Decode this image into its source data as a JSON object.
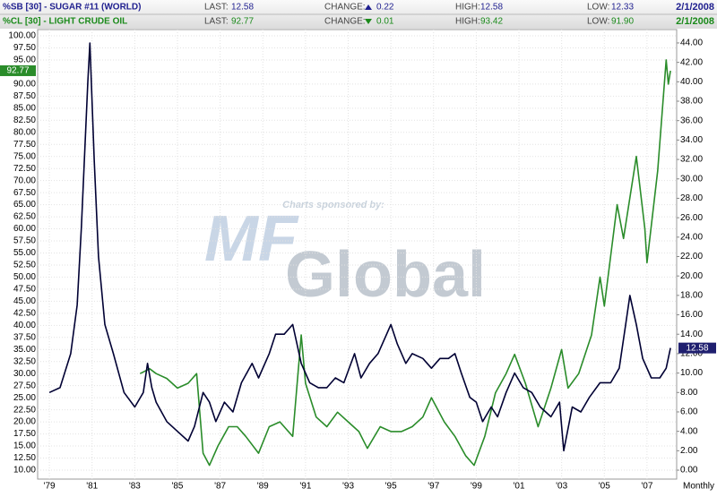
{
  "header": {
    "rows": [
      {
        "symbol": "%SB [30] - SUGAR #11 (WORLD)",
        "color": "#1f1f8f",
        "last_label": "LAST:",
        "last": "12.58",
        "change_label": "CHANGE:",
        "change_direction": "up",
        "change": "0.22",
        "high_label": "HIGH:",
        "high": "12.58",
        "low_label": "LOW:",
        "low": "12.33",
        "date": "2/1/2008"
      },
      {
        "symbol": "%CL [30] - LIGHT CRUDE OIL",
        "color": "#1a8a1a",
        "last_label": "LAST:",
        "last": "92.77",
        "change_label": "CHANGE:",
        "change_direction": "down",
        "change": "0.01",
        "high_label": "HIGH:",
        "high": "93.42",
        "low_label": "LOW:",
        "low": "91.90",
        "date": "2/1/2008"
      }
    ]
  },
  "chart_data": {
    "type": "line",
    "annotations": [
      "Charts sponsored by:",
      "MF",
      "Global"
    ],
    "x_unit_label": "Monthly",
    "xlim": [
      1978.45,
      2008.39
    ],
    "xticks": [
      {
        "value": 1979,
        "label": "'79"
      },
      {
        "value": 1981,
        "label": "'81"
      },
      {
        "value": 1983,
        "label": "'83"
      },
      {
        "value": 1985,
        "label": "'85"
      },
      {
        "value": 1987,
        "label": "'87"
      },
      {
        "value": 1989,
        "label": "'89"
      },
      {
        "value": 1991,
        "label": "'91"
      },
      {
        "value": 1993,
        "label": "'93"
      },
      {
        "value": 1995,
        "label": "'95"
      },
      {
        "value": 1997,
        "label": "'97"
      },
      {
        "value": 1999,
        "label": "'99"
      },
      {
        "value": 2001,
        "label": "'01"
      },
      {
        "value": 2003,
        "label": "'03"
      },
      {
        "value": 2005,
        "label": "'05"
      },
      {
        "value": 2007,
        "label": "'07"
      }
    ],
    "ylim": [
      8.14,
      101.3
    ],
    "yticks": [
      {
        "value": 10,
        "label": "10.00"
      },
      {
        "value": 12.5,
        "label": "12.50"
      },
      {
        "value": 15,
        "label": "15.00"
      },
      {
        "value": 17.5,
        "label": "17.50"
      },
      {
        "value": 20,
        "label": "20.00"
      },
      {
        "value": 22.5,
        "label": "22.50"
      },
      {
        "value": 25,
        "label": "25.00"
      },
      {
        "value": 27.5,
        "label": "27.50"
      },
      {
        "value": 30,
        "label": "30.00"
      },
      {
        "value": 32.5,
        "label": "32.50"
      },
      {
        "value": 35,
        "label": "35.00"
      },
      {
        "value": 37.5,
        "label": "37.50"
      },
      {
        "value": 40,
        "label": "40.00"
      },
      {
        "value": 42.5,
        "label": "42.50"
      },
      {
        "value": 45,
        "label": "45.00"
      },
      {
        "value": 47.5,
        "label": "47.50"
      },
      {
        "value": 50,
        "label": "50.00"
      },
      {
        "value": 52.5,
        "label": "52.50"
      },
      {
        "value": 55,
        "label": "55.00"
      },
      {
        "value": 57.5,
        "label": "57.50"
      },
      {
        "value": 60,
        "label": "60.00"
      },
      {
        "value": 62.5,
        "label": "62.50"
      },
      {
        "value": 65,
        "label": "65.00"
      },
      {
        "value": 67.5,
        "label": "67.50"
      },
      {
        "value": 70,
        "label": "70.00"
      },
      {
        "value": 72.5,
        "label": "72.50"
      },
      {
        "value": 75,
        "label": "75.00"
      },
      {
        "value": 77.5,
        "label": "77.50"
      },
      {
        "value": 80,
        "label": "80.00"
      },
      {
        "value": 82.5,
        "label": "82.50"
      },
      {
        "value": 85,
        "label": "85.00"
      },
      {
        "value": 87.5,
        "label": "87.50"
      },
      {
        "value": 90,
        "label": "90.00"
      },
      {
        "value": 92.5,
        "label": "92.50"
      },
      {
        "value": 95,
        "label": "95.00"
      },
      {
        "value": 97.5,
        "label": "97.50"
      },
      {
        "value": 100,
        "label": "100.00"
      }
    ],
    "y2lim": [
      -0.92,
      45.38
    ],
    "y2ticks": [
      {
        "value": 0,
        "label": "0.00"
      },
      {
        "value": 2,
        "label": "2.00"
      },
      {
        "value": 4,
        "label": "4.00"
      },
      {
        "value": 6,
        "label": "6.00"
      },
      {
        "value": 8,
        "label": "8.00"
      },
      {
        "value": 10,
        "label": "10.00"
      },
      {
        "value": 12,
        "label": "12.00"
      },
      {
        "value": 14,
        "label": "14.00"
      },
      {
        "value": 16,
        "label": "16.00"
      },
      {
        "value": 18,
        "label": "18.00"
      },
      {
        "value": 20,
        "label": "20.00"
      },
      {
        "value": 22,
        "label": "22.00"
      },
      {
        "value": 24,
        "label": "24.00"
      },
      {
        "value": 26,
        "label": "26.00"
      },
      {
        "value": 28,
        "label": "28.00"
      },
      {
        "value": 30,
        "label": "30.00"
      },
      {
        "value": 32,
        "label": "32.00"
      },
      {
        "value": 34,
        "label": "34.00"
      },
      {
        "value": 36,
        "label": "36.00"
      },
      {
        "value": 38,
        "label": "38.00"
      },
      {
        "value": 40,
        "label": "40.00"
      },
      {
        "value": 42,
        "label": "42.00"
      },
      {
        "value": 44,
        "label": "44.00"
      }
    ],
    "grid": true,
    "series": [
      {
        "name": "%CL [30] - LIGHT CRUDE OIL",
        "color": "#2a8c2a",
        "x": [
          1983.25,
          1983.7,
          1984.0,
          1984.5,
          1985.0,
          1985.5,
          1985.9,
          1986.2,
          1986.5,
          1986.9,
          1987.4,
          1987.8,
          1988.2,
          1988.8,
          1989.3,
          1989.8,
          1990.4,
          1990.8,
          1991.0,
          1991.5,
          1992.0,
          1992.5,
          1993.0,
          1993.5,
          1993.9,
          1994.5,
          1995.0,
          1995.5,
          1996.0,
          1996.5,
          1996.9,
          1997.5,
          1998.0,
          1998.5,
          1998.9,
          1999.4,
          1999.9,
          2000.4,
          2000.8,
          2001.3,
          2001.9,
          2002.5,
          2003.0,
          2003.3,
          2003.8,
          2004.4,
          2004.8,
          2005.0,
          2005.6,
          2005.9,
          2006.5,
          2006.9,
          2007.0,
          2007.5,
          2007.9,
          2008.0,
          2008.1
        ],
        "values": [
          30,
          31,
          30,
          29,
          27,
          28,
          30,
          13.5,
          11,
          15,
          19,
          19,
          17,
          13.5,
          19,
          20,
          17,
          38,
          28,
          21,
          19,
          22,
          20,
          18,
          14.5,
          19,
          18,
          18,
          19,
          21,
          25,
          20,
          17,
          13,
          11,
          17,
          26,
          30,
          34,
          28,
          19,
          27,
          35,
          27,
          30,
          38,
          50,
          44,
          65,
          58,
          75,
          60,
          53,
          72,
          95,
          90,
          92.77
        ]
      },
      {
        "name": "%SB [30] - SUGAR #11 (WORLD)",
        "color": "#000033",
        "axis": "y2",
        "x": [
          1979.0,
          1979.5,
          1980.0,
          1980.3,
          1980.5,
          1980.8,
          1980.9,
          1981.1,
          1981.3,
          1981.6,
          1982.0,
          1982.5,
          1983.0,
          1983.4,
          1983.6,
          1983.8,
          1984.0,
          1984.5,
          1985.0,
          1985.5,
          1985.8,
          1986.2,
          1986.5,
          1986.8,
          1987.2,
          1987.6,
          1988.0,
          1988.5,
          1988.8,
          1989.3,
          1989.6,
          1990.0,
          1990.4,
          1990.8,
          1991.2,
          1991.6,
          1992.0,
          1992.4,
          1992.8,
          1993.3,
          1993.6,
          1994.0,
          1994.4,
          1994.8,
          1995.0,
          1995.3,
          1995.7,
          1996.0,
          1996.5,
          1996.9,
          1997.3,
          1997.7,
          1998.0,
          1998.3,
          1998.7,
          1999.0,
          1999.3,
          1999.7,
          2000.0,
          2000.4,
          2000.8,
          2001.2,
          2001.6,
          2002.0,
          2002.5,
          2002.9,
          2003.1,
          2003.5,
          2003.9,
          2004.3,
          2004.8,
          2005.3,
          2005.7,
          2006.0,
          2006.2,
          2006.5,
          2006.8,
          2007.2,
          2007.6,
          2007.9,
          2008.1
        ],
        "values": [
          8,
          8.5,
          12,
          17,
          25,
          40,
          44,
          32,
          22,
          15,
          12,
          8,
          6.5,
          8,
          11,
          8.5,
          7,
          5,
          4,
          3,
          4.5,
          8,
          7,
          5,
          7,
          6,
          9,
          11,
          9.5,
          12,
          14,
          14,
          15,
          11,
          9,
          8.5,
          8.5,
          9.5,
          9,
          12,
          9.5,
          11,
          12,
          14,
          15,
          13,
          11,
          12,
          11.5,
          10.5,
          11.5,
          11.5,
          12,
          10,
          7.5,
          7,
          5,
          6.5,
          5.5,
          8,
          10,
          8.5,
          8,
          6.5,
          5.5,
          7,
          2,
          6.5,
          6,
          7.5,
          9,
          9,
          10.5,
          15,
          18,
          15,
          11.5,
          9.5,
          9.5,
          10.5,
          12.58
        ]
      }
    ]
  }
}
